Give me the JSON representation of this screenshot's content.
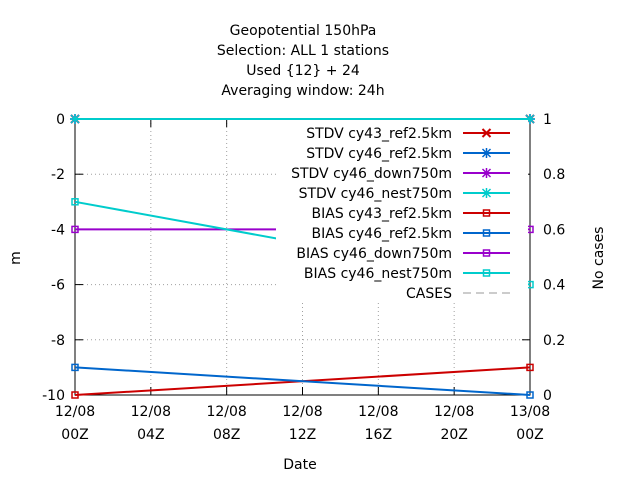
{
  "chart_data": {
    "type": "line",
    "title_lines": [
      "Geopotential 150hPa",
      "Selection: ALL      1 stations",
      "Used {12} + 24",
      "Averaging window: 24h"
    ],
    "xlabel": "Date",
    "ylabel": "m",
    "y2label": "No cases",
    "x_tick_labels": [
      [
        "12/08",
        "00Z"
      ],
      [
        "12/08",
        "04Z"
      ],
      [
        "12/08",
        "08Z"
      ],
      [
        "12/08",
        "12Z"
      ],
      [
        "12/08",
        "16Z"
      ],
      [
        "12/08",
        "20Z"
      ],
      [
        "13/08",
        "00Z"
      ]
    ],
    "x_hours": [
      0,
      4,
      8,
      12,
      16,
      20,
      24
    ],
    "xlim": [
      0,
      24
    ],
    "ylim": [
      -10,
      0
    ],
    "y_ticks": [
      0,
      -2,
      -4,
      -6,
      -8,
      -10
    ],
    "y2lim": [
      0,
      1
    ],
    "y2_ticks": [
      "1",
      "0.8",
      "0.6",
      "0.4",
      "0.2",
      "0"
    ],
    "y2_tick_values": [
      1,
      0.8,
      0.6,
      0.4,
      0.2,
      0
    ],
    "grid": true,
    "legend_position": "top-right",
    "series": [
      {
        "name": "STDV cy43_ref2.5km",
        "color": "#cc0000",
        "marker": "x",
        "x": [
          0,
          24
        ],
        "y": [
          0,
          0
        ]
      },
      {
        "name": "STDV cy46_ref2.5km",
        "color": "#0066cc",
        "marker": "star",
        "x": [
          0,
          24
        ],
        "y": [
          0,
          0
        ]
      },
      {
        "name": "STDV cy46_down750m",
        "color": "#9900cc",
        "marker": "star",
        "x": [
          0,
          24
        ],
        "y": [
          0,
          0
        ]
      },
      {
        "name": "STDV cy46_nest750m",
        "color": "#00cccc",
        "marker": "star",
        "x": [
          0,
          24
        ],
        "y": [
          0,
          0
        ]
      },
      {
        "name": "BIAS cy43_ref2.5km",
        "color": "#cc0000",
        "marker": "square",
        "x": [
          0,
          24
        ],
        "y": [
          -10,
          -9
        ]
      },
      {
        "name": "BIAS cy46_ref2.5km",
        "color": "#0066cc",
        "marker": "square",
        "x": [
          0,
          24
        ],
        "y": [
          -9,
          -10
        ]
      },
      {
        "name": "BIAS cy46_down750m",
        "color": "#9900cc",
        "marker": "square",
        "x": [
          0,
          24
        ],
        "y": [
          -4,
          -4
        ]
      },
      {
        "name": "BIAS cy46_nest750m",
        "color": "#00cccc",
        "marker": "square",
        "x": [
          0,
          24
        ],
        "y": [
          -3,
          -6
        ]
      },
      {
        "name": "CASES",
        "color": "#999999",
        "marker": "none",
        "dashed": true,
        "x": [],
        "y": []
      }
    ]
  }
}
